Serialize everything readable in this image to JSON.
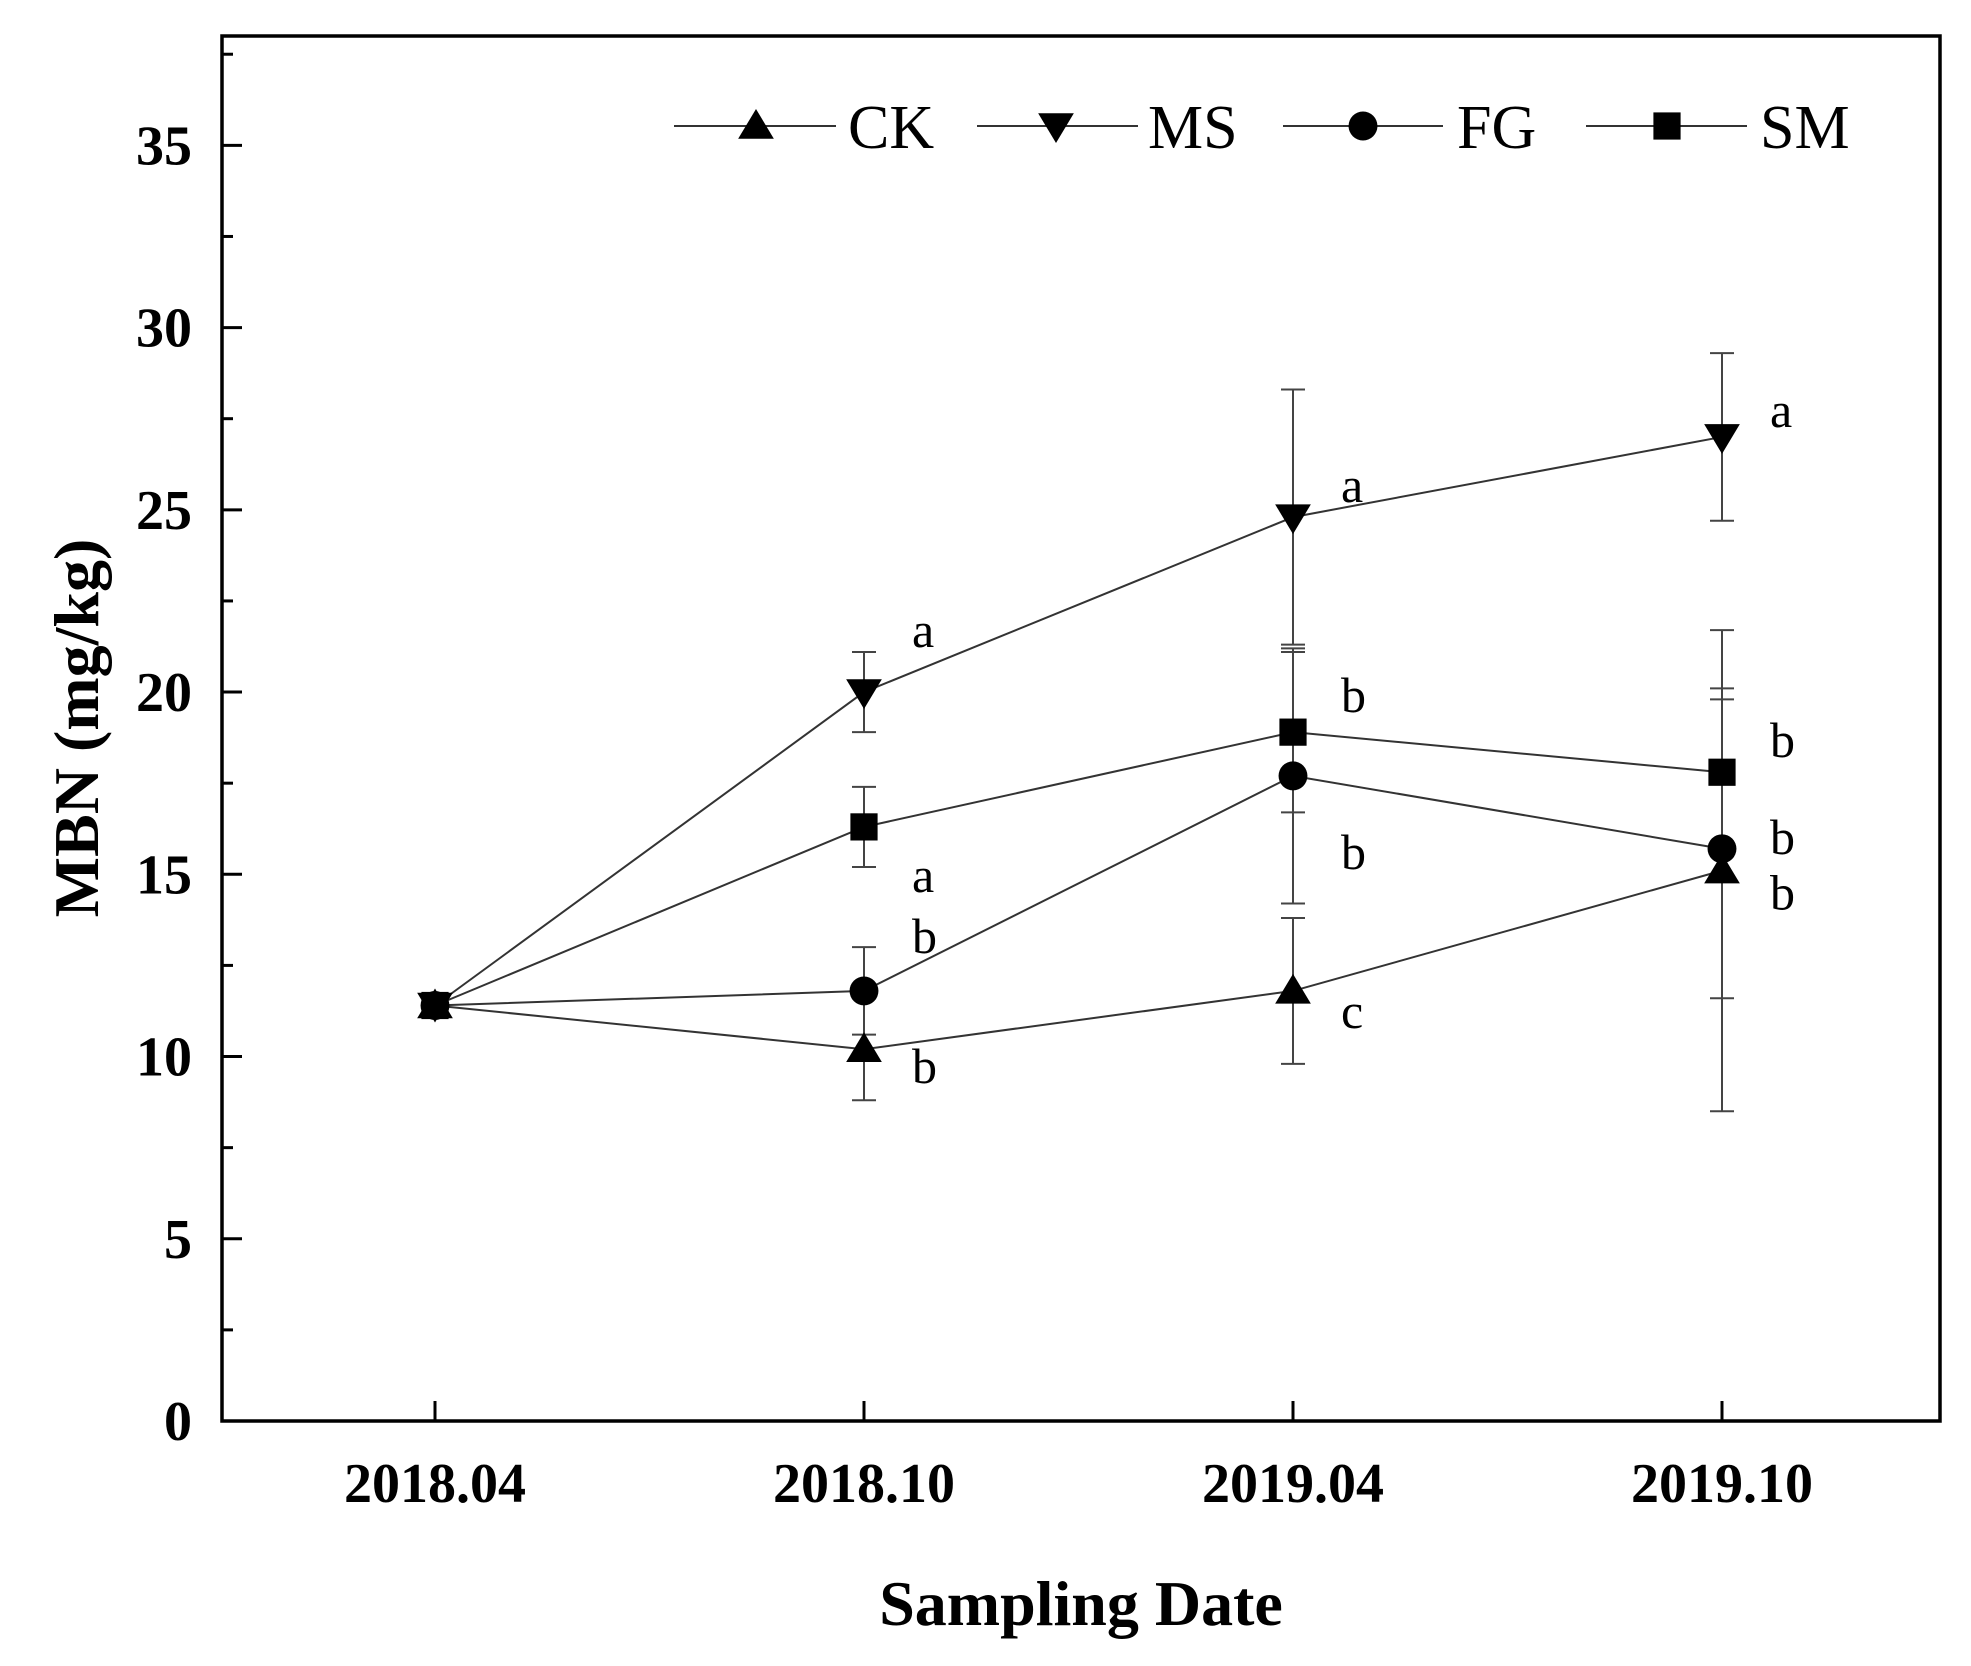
{
  "chart_data": {
    "type": "line",
    "title": "",
    "xlabel": "Sampling Date",
    "ylabel": "MBN (mg/kg)",
    "categories": [
      "2018.04",
      "2018.10",
      "2019.04",
      "2019.10"
    ],
    "ylim": [
      0,
      38
    ],
    "yticks": [
      0,
      5,
      10,
      15,
      20,
      25,
      30,
      35
    ],
    "legend_position": "top-right",
    "grid": false,
    "series": [
      {
        "name": "CK",
        "marker": "triangle-up",
        "values": [
          11.4,
          10.2,
          11.8,
          15.1
        ],
        "errors": [
          0,
          1.4,
          2.0,
          6.6
        ],
        "labels": [
          "",
          "b",
          "c",
          "b"
        ]
      },
      {
        "name": "MS",
        "marker": "triangle-down",
        "values": [
          11.4,
          20.0,
          24.8,
          27.0
        ],
        "errors": [
          0,
          1.1,
          3.5,
          2.3
        ],
        "labels": [
          "",
          "a",
          "a",
          "a"
        ]
      },
      {
        "name": "FG",
        "marker": "circle",
        "values": [
          11.4,
          11.8,
          17.7,
          15.7
        ],
        "errors": [
          0,
          1.2,
          3.5,
          4.1
        ],
        "labels": [
          "",
          "b",
          "b",
          "b"
        ]
      },
      {
        "name": "SM",
        "marker": "square",
        "values": [
          11.4,
          16.3,
          18.9,
          17.8
        ],
        "errors": [
          0,
          1.1,
          2.2,
          2.3
        ],
        "labels": [
          "",
          "a",
          "b",
          "b"
        ]
      }
    ]
  }
}
